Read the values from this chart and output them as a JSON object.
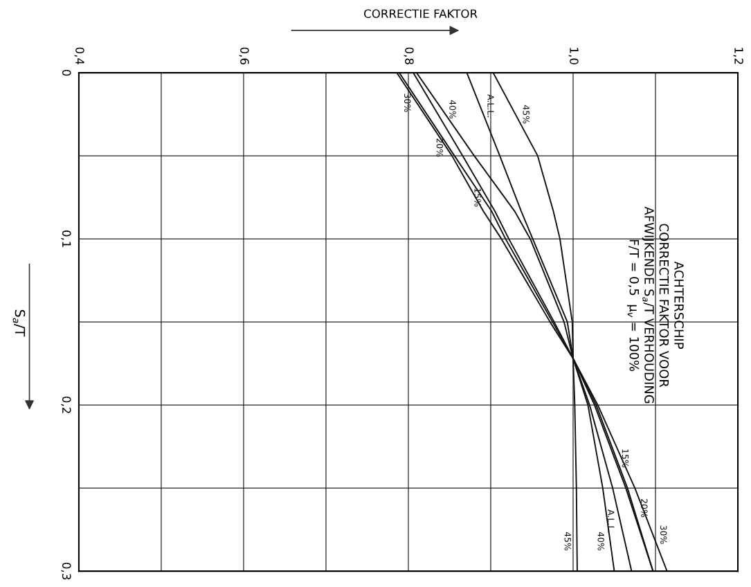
{
  "chart_data": {
    "type": "line",
    "title": "ACHTERSCHIP\nCORRECTIE FAKTOR VOOR\nAFWIJKENDE S$_{a}$/T VERHOUDING\nF/T = 0,5  μ$_{v}$ = 100%",
    "xlabel": "CORRECTIE FAKTOR",
    "ylabel": "S$_{a}$/T",
    "series": [
      {
        "name": "30%",
        "color": "#111111",
        "x": [
          0.786,
          0.853,
          0.891,
          0.913,
          0.972,
          1.0,
          1.03,
          1.075,
          1.114
        ],
        "values": [
          0,
          0.05,
          0.0833,
          0.1,
          0.15,
          0.172,
          0.2,
          0.25,
          0.3
        ]
      },
      {
        "name": "20%",
        "color": "#111111",
        "x": [
          0.789,
          0.856,
          0.901,
          0.918,
          0.975,
          1.0,
          1.028,
          1.066,
          1.097
        ],
        "values": [
          0,
          0.05,
          0.0833,
          0.1,
          0.15,
          0.172,
          0.2,
          0.25,
          0.3
        ]
      },
      {
        "name": "15%",
        "color": "#111111",
        "x": [
          0.806,
          0.866,
          0.905,
          0.922,
          0.977,
          1.0,
          1.026,
          1.064,
          1.097
        ],
        "values": [
          0,
          0.05,
          0.0833,
          0.1,
          0.15,
          0.172,
          0.2,
          0.25,
          0.3
        ]
      },
      {
        "name": "40%",
        "color": "#111111",
        "x": [
          0.81,
          0.88,
          0.929,
          0.948,
          0.989,
          1.0,
          1.018,
          1.036,
          1.05
        ],
        "values": [
          0,
          0.05,
          0.0833,
          0.1,
          0.15,
          0.172,
          0.2,
          0.25,
          0.3
        ]
      },
      {
        "name": "A.L.L.",
        "color": "#111111",
        "x": [
          0.871,
          0.911,
          0.937,
          0.951,
          0.993,
          1.0,
          1.02,
          1.048,
          1.071
        ],
        "values": [
          0,
          0.05,
          0.0833,
          0.1,
          0.15,
          0.172,
          0.2,
          0.25,
          0.3
        ]
      },
      {
        "name": "45%",
        "color": "#111111",
        "x": [
          0.903,
          0.957,
          0.976,
          0.984,
          0.999,
          1.0,
          1.002,
          1.004,
          1.005
        ],
        "values": [
          0,
          0.05,
          0.0833,
          0.1,
          0.15,
          0.172,
          0.2,
          0.25,
          0.3
        ]
      }
    ],
    "xlim": [
      0.4,
      1.2
    ],
    "xticks": [
      {
        "value": 0.4,
        "label": "0,4"
      },
      {
        "value": 0.5,
        "label": null
      },
      {
        "value": 0.6,
        "label": "0,6"
      },
      {
        "value": 0.7,
        "label": null
      },
      {
        "value": 0.8,
        "label": "0,8"
      },
      {
        "value": 0.9,
        "label": null
      },
      {
        "value": 1.0,
        "label": "1,0"
      },
      {
        "value": 1.1,
        "label": null
      },
      {
        "value": 1.2,
        "label": "1,2"
      }
    ],
    "ylim": [
      0.3,
      0
    ],
    "yticks": [
      {
        "value": 0,
        "label": "0"
      },
      {
        "value": 0.05,
        "label": null
      },
      {
        "value": 0.1,
        "label": "0,1"
      },
      {
        "value": 0.15,
        "label": null
      },
      {
        "value": 0.2,
        "label": "0,2"
      },
      {
        "value": 0.25,
        "label": null
      },
      {
        "value": 0.3,
        "label": "0,3"
      }
    ],
    "grid": true,
    "legend": false,
    "marker": "none",
    "line_style": "solid"
  }
}
